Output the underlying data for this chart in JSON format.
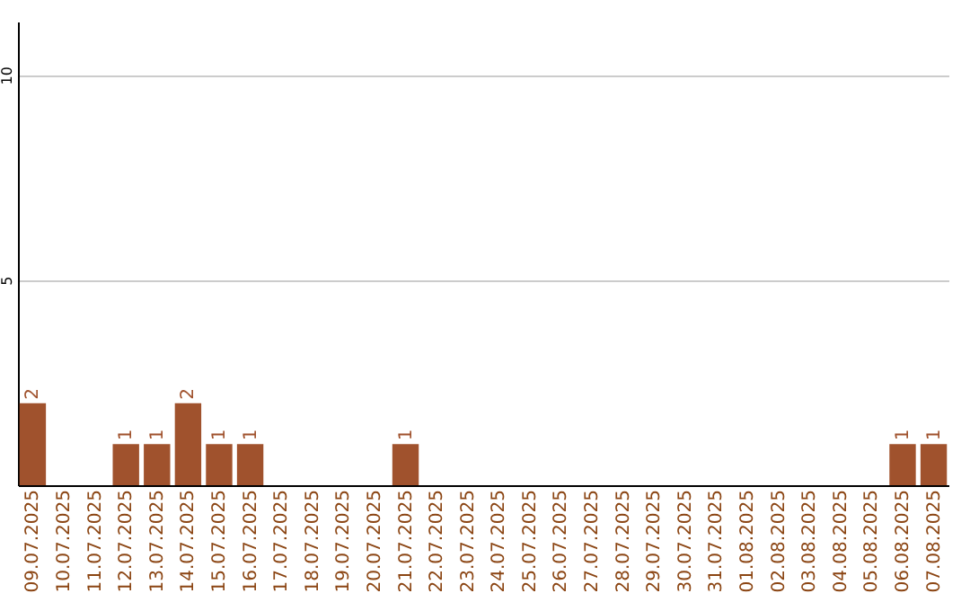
{
  "chart_data": {
    "type": "bar",
    "categories": [
      "09.07.2025",
      "10.07.2025",
      "11.07.2025",
      "12.07.2025",
      "13.07.2025",
      "14.07.2025",
      "15.07.2025",
      "16.07.2025",
      "17.07.2025",
      "18.07.2025",
      "19.07.2025",
      "20.07.2025",
      "21.07.2025",
      "22.07.2025",
      "23.07.2025",
      "24.07.2025",
      "25.07.2025",
      "26.07.2025",
      "27.07.2025",
      "28.07.2025",
      "29.07.2025",
      "30.07.2025",
      "31.07.2025",
      "01.08.2025",
      "02.08.2025",
      "03.08.2025",
      "04.08.2025",
      "05.08.2025",
      "06.08.2025",
      "07.08.2025"
    ],
    "values": [
      2,
      0,
      0,
      1,
      1,
      2,
      1,
      1,
      0,
      0,
      0,
      0,
      1,
      0,
      0,
      0,
      0,
      0,
      0,
      0,
      0,
      0,
      0,
      0,
      0,
      0,
      0,
      0,
      1,
      1
    ],
    "value_labels": [
      "2",
      null,
      null,
      "1",
      "1",
      "2",
      "1",
      "1",
      null,
      null,
      null,
      null,
      "1",
      null,
      null,
      null,
      null,
      null,
      null,
      null,
      null,
      null,
      null,
      null,
      null,
      null,
      null,
      null,
      "1",
      "1"
    ],
    "color": "#a0522d",
    "ylim": [
      0,
      11.3
    ],
    "yticks": [
      5,
      10
    ],
    "grid": "y"
  }
}
